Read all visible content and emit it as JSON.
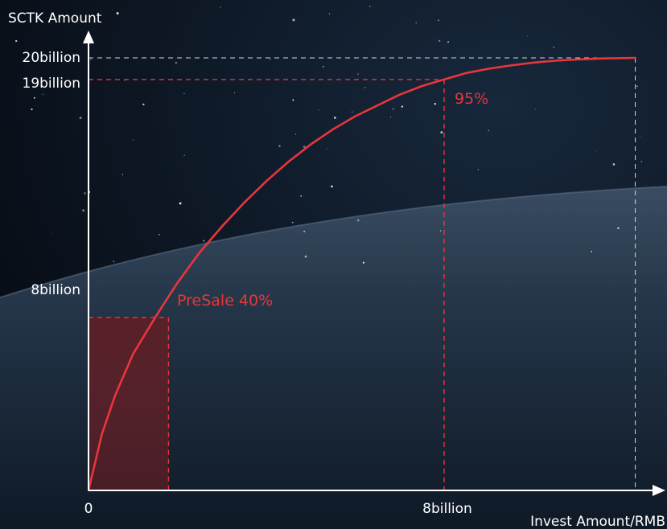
{
  "chart_data": {
    "type": "line",
    "title": "",
    "xlabel": "Invest Amount/RMB",
    "ylabel": "SCTK Amount",
    "x_ticks": [
      {
        "value": 0,
        "label": "0"
      },
      {
        "value": 8,
        "label": "8billion"
      }
    ],
    "y_ticks": [
      {
        "value": 8,
        "label": "8billion"
      },
      {
        "value": 19,
        "label": "19billion"
      },
      {
        "value": 20,
        "label": "20billion"
      }
    ],
    "xlim": [
      0,
      12.5
    ],
    "ylim": [
      0,
      20
    ],
    "x_max_data": 12.3,
    "series": [
      {
        "color": "#e8363a",
        "x": [
          0,
          0.3,
          0.6,
          1.0,
          1.5,
          2.0,
          2.5,
          3.0,
          3.5,
          4.0,
          4.5,
          5.0,
          5.5,
          6.0,
          6.5,
          7.0,
          7.5,
          8.0,
          8.5,
          9.0,
          9.5,
          10.0,
          10.5,
          11.0,
          11.5,
          12.0,
          12.3
        ],
        "y": [
          0,
          2.6,
          4.4,
          6.3,
          8.0,
          9.6,
          11.0,
          12.2,
          13.3,
          14.3,
          15.2,
          16.0,
          16.7,
          17.3,
          17.8,
          18.3,
          18.7,
          19.0,
          19.3,
          19.5,
          19.65,
          19.78,
          19.87,
          19.93,
          19.97,
          19.99,
          20.0
        ]
      }
    ],
    "annotations": [
      {
        "text": "PreSale 40%",
        "x": 1.8,
        "y": 8,
        "color": "#e8363a"
      },
      {
        "text": "95%",
        "x": 8,
        "y": 19,
        "color": "#e8363a"
      }
    ],
    "presale_region": {
      "x": [
        0,
        1.8
      ],
      "y": [
        0,
        8
      ]
    },
    "grid": false,
    "legend": "none",
    "colors": {
      "axis": "#ffffff",
      "curve": "#e8363a",
      "guide_red": "#e8363a",
      "guide_white": "#cfd6df"
    }
  }
}
